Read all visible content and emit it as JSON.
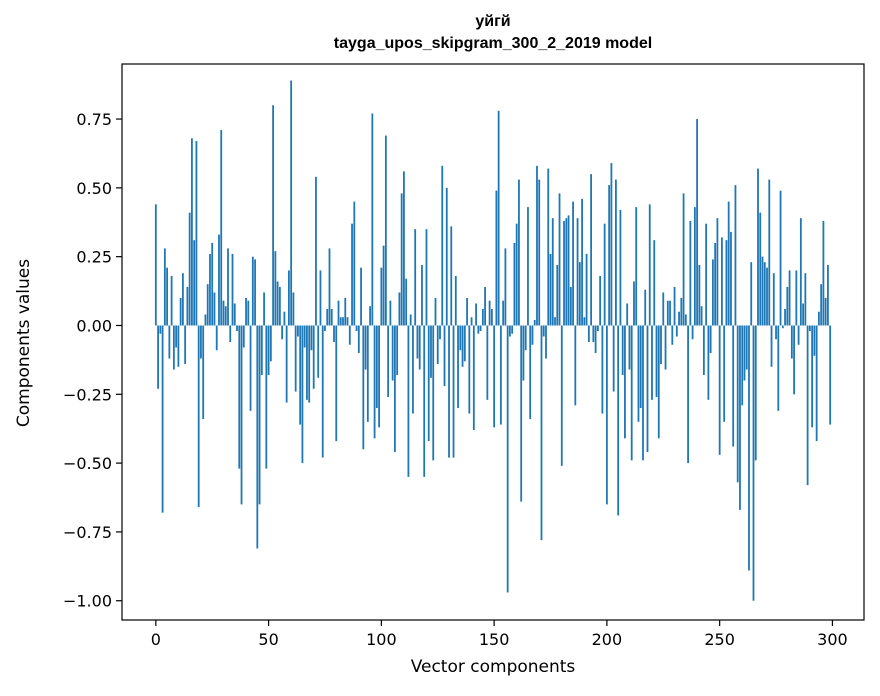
{
  "chart_data": {
    "type": "bar",
    "title": "уйгй",
    "subtitle": "tayga_upos_skipgram_300_2_2019 model",
    "xlabel": "Vector components",
    "ylabel": "Components values",
    "xlim": [
      -15,
      314
    ],
    "ylim": [
      -1.07,
      0.95
    ],
    "xticks": [
      0,
      50,
      100,
      150,
      200,
      250,
      300
    ],
    "yticks": [
      -1.0,
      -0.75,
      -0.5,
      -0.25,
      0.0,
      0.25,
      0.5,
      0.75
    ],
    "ytick_labels": [
      "−1.00",
      "−0.75",
      "−0.50",
      "−0.25",
      "0.00",
      "0.25",
      "0.50",
      "0.75"
    ],
    "grid": false,
    "bar_color": "#1f77b4",
    "x": [
      0,
      1,
      2,
      3,
      4,
      5,
      6,
      7,
      8,
      9,
      10,
      11,
      12,
      13,
      14,
      15,
      16,
      17,
      18,
      19,
      20,
      21,
      22,
      23,
      24,
      25,
      26,
      27,
      28,
      29,
      30,
      31,
      32,
      33,
      34,
      35,
      36,
      37,
      38,
      39,
      40,
      41,
      42,
      43,
      44,
      45,
      46,
      47,
      48,
      49,
      50,
      51,
      52,
      53,
      54,
      55,
      56,
      57,
      58,
      59,
      60,
      61,
      62,
      63,
      64,
      65,
      66,
      67,
      68,
      69,
      70,
      71,
      72,
      73,
      74,
      75,
      76,
      77,
      78,
      79,
      80,
      81,
      82,
      83,
      84,
      85,
      86,
      87,
      88,
      89,
      90,
      91,
      92,
      93,
      94,
      95,
      96,
      97,
      98,
      99,
      100,
      101,
      102,
      103,
      104,
      105,
      106,
      107,
      108,
      109,
      110,
      111,
      112,
      113,
      114,
      115,
      116,
      117,
      118,
      119,
      120,
      121,
      122,
      123,
      124,
      125,
      126,
      127,
      128,
      129,
      130,
      131,
      132,
      133,
      134,
      135,
      136,
      137,
      138,
      139,
      140,
      141,
      142,
      143,
      144,
      145,
      146,
      147,
      148,
      149,
      150,
      151,
      152,
      153,
      154,
      155,
      156,
      157,
      158,
      159,
      160,
      161,
      162,
      163,
      164,
      165,
      166,
      167,
      168,
      169,
      170,
      171,
      172,
      173,
      174,
      175,
      176,
      177,
      178,
      179,
      180,
      181,
      182,
      183,
      184,
      185,
      186,
      187,
      188,
      189,
      190,
      191,
      192,
      193,
      194,
      195,
      196,
      197,
      198,
      199,
      200,
      201,
      202,
      203,
      204,
      205,
      206,
      207,
      208,
      209,
      210,
      211,
      212,
      213,
      214,
      215,
      216,
      217,
      218,
      219,
      220,
      221,
      222,
      223,
      224,
      225,
      226,
      227,
      228,
      229,
      230,
      231,
      232,
      233,
      234,
      235,
      236,
      237,
      238,
      239,
      240,
      241,
      242,
      243,
      244,
      245,
      246,
      247,
      248,
      249,
      250,
      251,
      252,
      253,
      254,
      255,
      256,
      257,
      258,
      259,
      260,
      261,
      262,
      263,
      264,
      265,
      266,
      267,
      268,
      269,
      270,
      271,
      272,
      273,
      274,
      275,
      276,
      277,
      278,
      279,
      280,
      281,
      282,
      283,
      284,
      285,
      286,
      287,
      288,
      289,
      290,
      291,
      292,
      293,
      294,
      295,
      296,
      297,
      298,
      299
    ],
    "values": [
      0.44,
      -0.23,
      -0.03,
      -0.68,
      0.28,
      0.21,
      -0.12,
      0.18,
      -0.16,
      -0.08,
      -0.15,
      0.1,
      0.19,
      -0.14,
      0.14,
      0.41,
      0.68,
      0.31,
      0.67,
      -0.66,
      -0.12,
      -0.34,
      0.04,
      0.15,
      0.26,
      0.3,
      0.12,
      -0.09,
      0.33,
      0.71,
      0.09,
      0.07,
      0.28,
      -0.06,
      0.26,
      0.08,
      -0.02,
      -0.52,
      -0.65,
      -0.08,
      0.1,
      0.09,
      -0.31,
      0.25,
      0.24,
      -0.81,
      -0.65,
      -0.18,
      0.12,
      -0.52,
      -0.18,
      -0.13,
      0.8,
      0.27,
      0.16,
      0.14,
      -0.05,
      0.05,
      -0.28,
      0.2,
      0.89,
      0.12,
      -0.24,
      -0.04,
      -0.36,
      -0.5,
      -0.08,
      -0.27,
      -0.28,
      -0.09,
      -0.23,
      0.54,
      -0.19,
      0.2,
      -0.48,
      -0.02,
      0.06,
      0.28,
      0.06,
      -0.06,
      -0.42,
      0.09,
      0.03,
      0.03,
      0.1,
      0.03,
      -0.07,
      0.37,
      0.45,
      -0.02,
      -0.1,
      0.21,
      -0.45,
      -0.16,
      -0.35,
      0.07,
      0.77,
      -0.41,
      -0.3,
      -0.37,
      0.21,
      0.29,
      0.69,
      -0.26,
      0.09,
      -0.2,
      -0.46,
      -0.18,
      0.12,
      0.48,
      0.56,
      0.17,
      -0.55,
      0.04,
      -0.32,
      0.35,
      -0.12,
      -0.16,
      0.22,
      -0.55,
      0.35,
      -0.42,
      -0.19,
      -0.49,
      0.1,
      -0.14,
      -0.05,
      0.58,
      -0.22,
      0.5,
      -0.48,
      0.36,
      -0.48,
      0.18,
      -0.3,
      -0.09,
      -0.15,
      -0.13,
      0.1,
      -0.32,
      0.03,
      -0.38,
      0.08,
      -0.03,
      -0.02,
      0.06,
      0.14,
      -0.27,
      0.09,
      0.06,
      -0.37,
      0.49,
      0.78,
      -0.36,
      0.09,
      0.28,
      -0.97,
      -0.04,
      -0.03,
      0.3,
      0.37,
      0.53,
      -0.64,
      -0.2,
      -0.09,
      0.43,
      -0.34,
      -0.07,
      0.02,
      0.58,
      0.53,
      -0.78,
      -0.04,
      -0.12,
      0.57,
      0.26,
      0.39,
      0.03,
      0.22,
      0.48,
      -0.51,
      0.38,
      0.39,
      0.4,
      0.14,
      0.45,
      -0.29,
      0.39,
      0.23,
      0.46,
      0.03,
      0.26,
      -0.06,
      0.55,
      -0.06,
      -0.1,
      -0.02,
      0.18,
      -0.32,
      0.37,
      -0.65,
      0.51,
      0.59,
      -0.24,
      0.53,
      -0.69,
      0.42,
      -0.18,
      -0.41,
      0.08,
      -0.16,
      -0.49,
      0.16,
      0.43,
      -0.35,
      -0.3,
      -0.49,
      0.13,
      -0.46,
      0.44,
      -0.27,
      0.31,
      -0.26,
      -0.41,
      -0.14,
      0.12,
      -0.16,
      0.09,
      0.09,
      -0.07,
      0.14,
      -0.04,
      0.05,
      0.1,
      0.48,
      0.04,
      -0.5,
      0.38,
      -0.05,
      0.43,
      0.75,
      0.22,
      0.07,
      -0.18,
      0.37,
      -0.27,
      -0.1,
      0.24,
      0.3,
      0.39,
      -0.47,
      0.32,
      -0.35,
      0.31,
      0.45,
      0.34,
      -0.44,
      0.51,
      -0.57,
      -0.67,
      -0.29,
      -0.2,
      -0.16,
      -0.89,
      0.23,
      -1.0,
      -0.49,
      0.57,
      0.41,
      0.25,
      0.23,
      0.21,
      0.53,
      -0.15,
      0.19,
      -0.05,
      -0.31,
      0.49,
      -0.01,
      0.06,
      0.14,
      0.2,
      -0.12,
      -0.25,
      0.2,
      -0.07,
      0.39,
      0.08,
      0.19,
      -0.58,
      -0.02,
      -0.37,
      -0.11,
      -0.42,
      0.05,
      0.15,
      0.38,
      0.1,
      0.22,
      -0.36
    ]
  }
}
